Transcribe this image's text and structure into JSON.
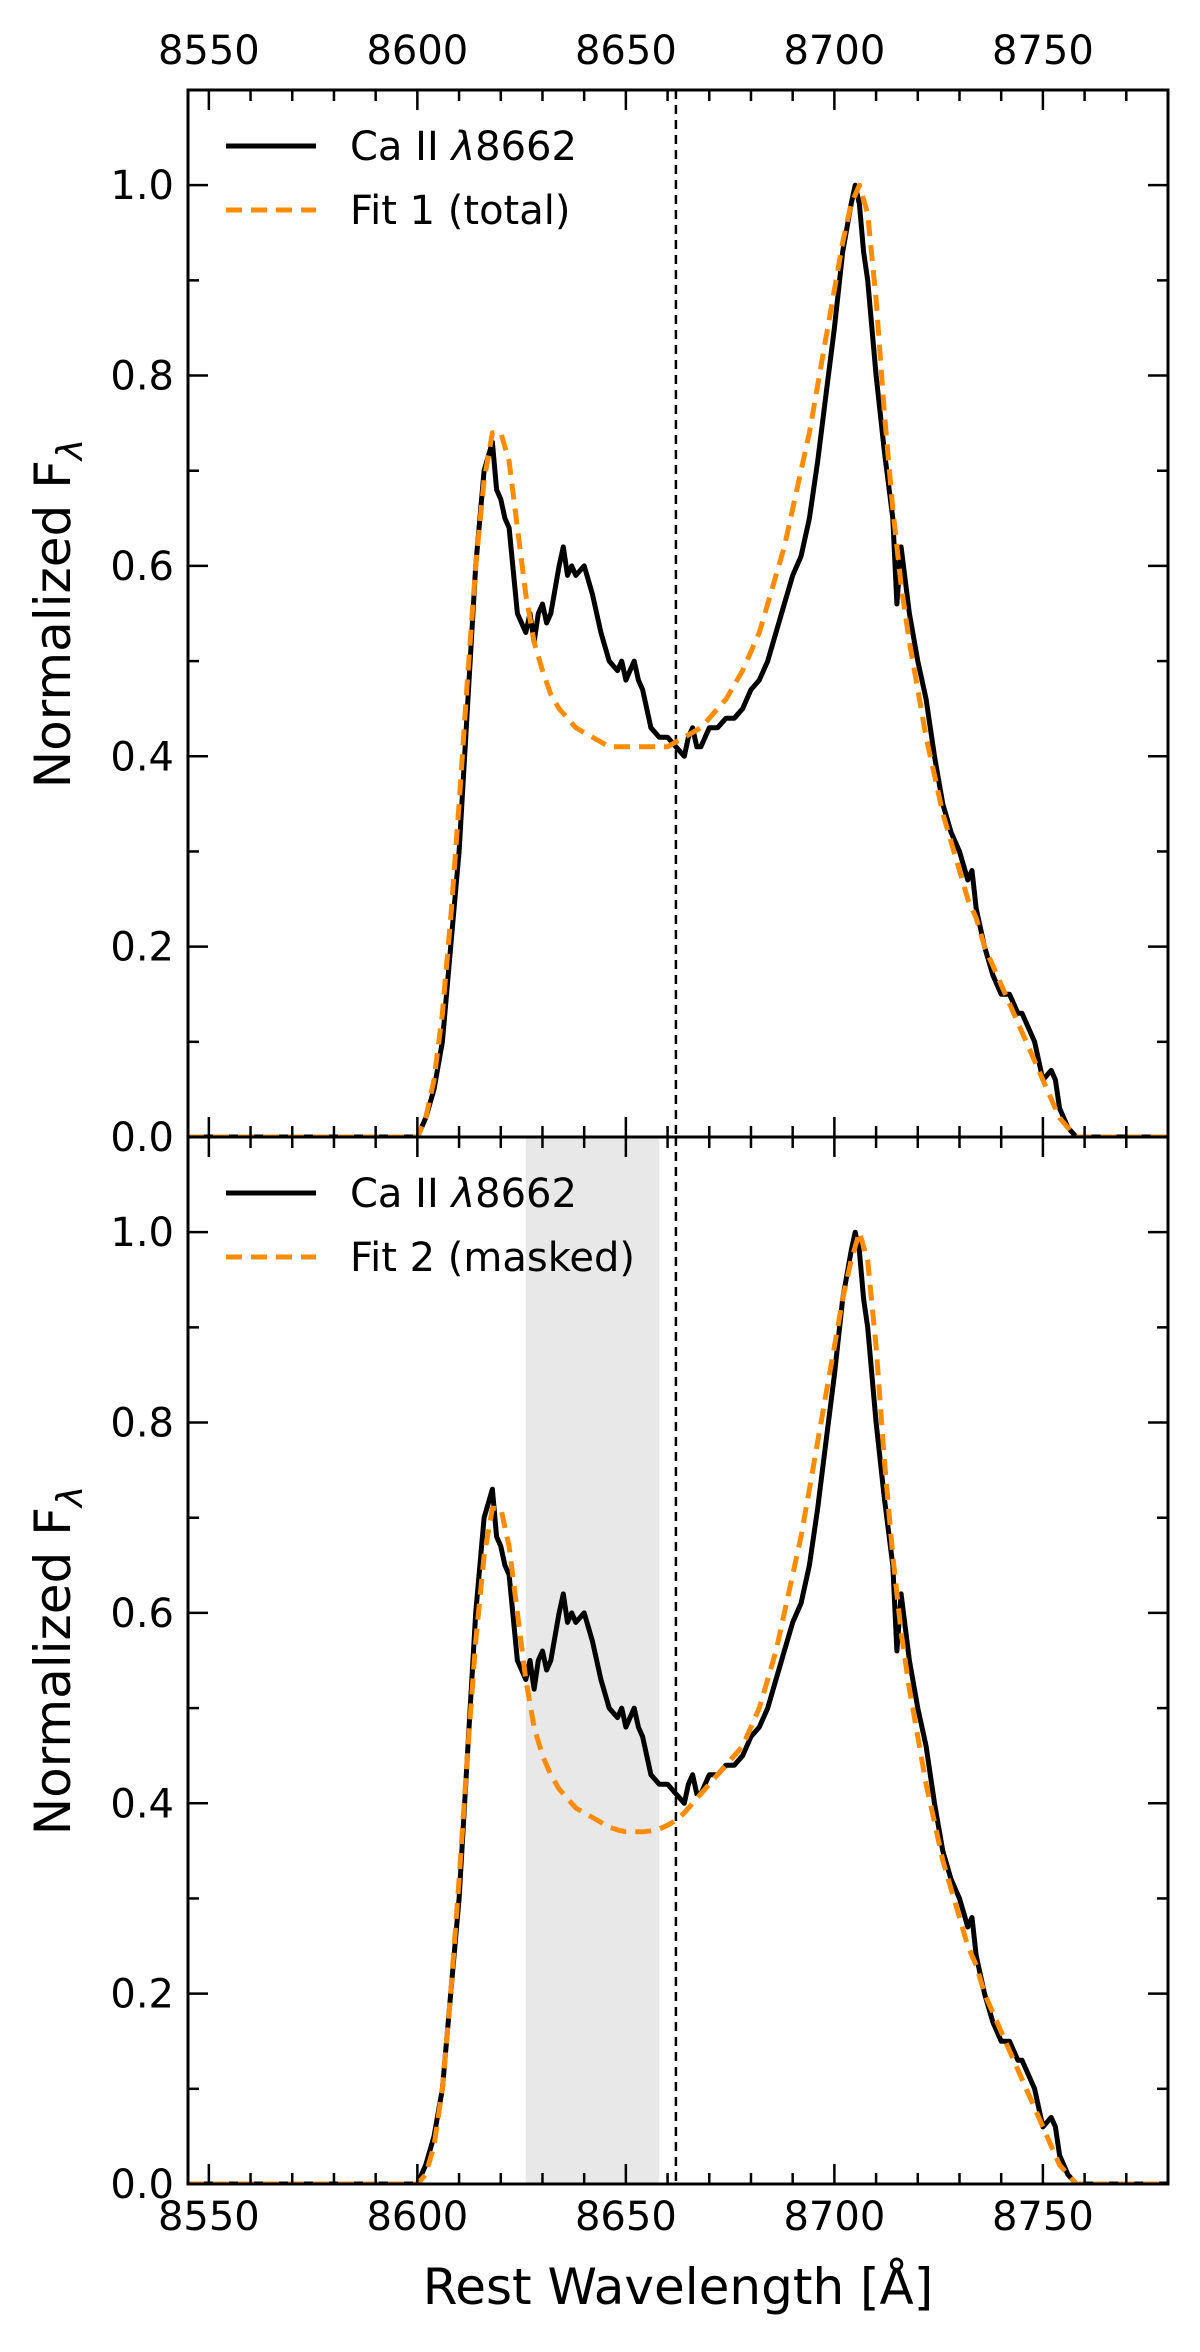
{
  "chart_data": [
    {
      "type": "line",
      "panel": "top",
      "xlim": [
        8545,
        8780
      ],
      "ylim": [
        0.0,
        1.1
      ],
      "xticks": [
        8550,
        8600,
        8650,
        8700,
        8750
      ],
      "yticks": [
        0.0,
        0.2,
        0.4,
        0.6,
        0.8,
        1.0
      ],
      "ytick_labels": [
        "0.0",
        "0.2",
        "0.4",
        "0.6",
        "0.8",
        "1.0"
      ],
      "xtick_labels_top": [
        "8550",
        "8600",
        "8650",
        "8700",
        "8750"
      ],
      "ylabel": "Normalized F",
      "ylabel_sub": "λ",
      "vline_x": 8662,
      "legend": [
        {
          "label": "Ca II ",
          "label_italic": "λ",
          "label_tail": "8662",
          "style": "solid",
          "color": "#000000"
        },
        {
          "label": "Fit 1 (total)",
          "style": "dashed",
          "color": "#FF8C00"
        }
      ],
      "series": [
        {
          "name": "Ca II λ8662",
          "color": "#000000",
          "x": [
            8545,
            8600,
            8602,
            8604,
            8606,
            8608,
            8610,
            8612,
            8614,
            8616,
            8618,
            8619,
            8620,
            8621,
            8622,
            8624,
            8626,
            8627,
            8628,
            8629,
            8630,
            8631,
            8632,
            8634,
            8635,
            8636,
            8637,
            8638,
            8640,
            8642,
            8644,
            8646,
            8648,
            8649,
            8650,
            8651,
            8652,
            8653,
            8654,
            8656,
            8658,
            8660,
            8662,
            8664,
            8665,
            8666,
            8667,
            8668,
            8670,
            8672,
            8674,
            8675,
            8676,
            8678,
            8680,
            8682,
            8684,
            8686,
            8688,
            8690,
            8692,
            8694,
            8696,
            8698,
            8700,
            8702,
            8704,
            8705,
            8706,
            8707,
            8708,
            8710,
            8712,
            8714,
            8715,
            8716,
            8718,
            8720,
            8722,
            8724,
            8726,
            8728,
            8730,
            8732,
            8733,
            8734,
            8736,
            8738,
            8740,
            8742,
            8744,
            8745,
            8746,
            8748,
            8750,
            8752,
            8753,
            8754,
            8756,
            8758,
            8760,
            8780
          ],
          "y": [
            0.0,
            0.0,
            0.02,
            0.05,
            0.1,
            0.2,
            0.3,
            0.45,
            0.6,
            0.7,
            0.73,
            0.68,
            0.67,
            0.65,
            0.64,
            0.55,
            0.53,
            0.55,
            0.52,
            0.55,
            0.56,
            0.54,
            0.55,
            0.6,
            0.62,
            0.59,
            0.6,
            0.59,
            0.6,
            0.57,
            0.53,
            0.5,
            0.49,
            0.5,
            0.48,
            0.49,
            0.5,
            0.48,
            0.47,
            0.43,
            0.42,
            0.42,
            0.41,
            0.4,
            0.42,
            0.43,
            0.41,
            0.41,
            0.43,
            0.43,
            0.44,
            0.44,
            0.44,
            0.45,
            0.47,
            0.48,
            0.5,
            0.53,
            0.56,
            0.59,
            0.61,
            0.65,
            0.71,
            0.78,
            0.85,
            0.93,
            0.98,
            1.0,
            0.98,
            0.93,
            0.9,
            0.8,
            0.72,
            0.65,
            0.56,
            0.62,
            0.55,
            0.5,
            0.46,
            0.4,
            0.35,
            0.32,
            0.3,
            0.27,
            0.28,
            0.24,
            0.2,
            0.17,
            0.15,
            0.15,
            0.13,
            0.13,
            0.12,
            0.1,
            0.06,
            0.07,
            0.06,
            0.03,
            0.01,
            0.0,
            0.0,
            0.0
          ]
        },
        {
          "name": "Fit 1 (total)",
          "color": "#FF8C00",
          "x": [
            8545,
            8600,
            8602,
            8604,
            8606,
            8608,
            8610,
            8612,
            8614,
            8616,
            8618,
            8620,
            8622,
            8624,
            8626,
            8628,
            8630,
            8632,
            8634,
            8636,
            8638,
            8640,
            8642,
            8644,
            8646,
            8648,
            8650,
            8652,
            8654,
            8656,
            8658,
            8660,
            8662,
            8664,
            8666,
            8668,
            8670,
            8672,
            8674,
            8676,
            8678,
            8680,
            8682,
            8684,
            8686,
            8688,
            8690,
            8692,
            8694,
            8696,
            8698,
            8700,
            8702,
            8704,
            8706,
            8708,
            8710,
            8712,
            8714,
            8716,
            8718,
            8720,
            8722,
            8724,
            8726,
            8728,
            8730,
            8732,
            8734,
            8736,
            8738,
            8740,
            8742,
            8744,
            8746,
            8748,
            8750,
            8752,
            8754,
            8756,
            8758,
            8780
          ],
          "y": [
            0.0,
            0.0,
            0.02,
            0.06,
            0.13,
            0.23,
            0.35,
            0.48,
            0.6,
            0.69,
            0.74,
            0.74,
            0.71,
            0.64,
            0.57,
            0.52,
            0.49,
            0.465,
            0.45,
            0.44,
            0.43,
            0.425,
            0.42,
            0.415,
            0.41,
            0.41,
            0.41,
            0.41,
            0.41,
            0.41,
            0.41,
            0.41,
            0.415,
            0.42,
            0.425,
            0.43,
            0.44,
            0.45,
            0.46,
            0.475,
            0.49,
            0.51,
            0.53,
            0.56,
            0.59,
            0.62,
            0.66,
            0.7,
            0.74,
            0.79,
            0.84,
            0.89,
            0.94,
            0.98,
            1.0,
            0.97,
            0.88,
            0.76,
            0.66,
            0.58,
            0.52,
            0.47,
            0.42,
            0.38,
            0.34,
            0.31,
            0.28,
            0.25,
            0.23,
            0.2,
            0.18,
            0.16,
            0.14,
            0.12,
            0.1,
            0.08,
            0.06,
            0.04,
            0.02,
            0.01,
            0.0,
            0.0
          ]
        }
      ]
    },
    {
      "type": "line",
      "panel": "bottom",
      "xlim": [
        8545,
        8780
      ],
      "ylim": [
        0.0,
        1.1
      ],
      "xticks": [
        8550,
        8600,
        8650,
        8700,
        8750
      ],
      "yticks": [
        0.0,
        0.2,
        0.4,
        0.6,
        0.8,
        1.0
      ],
      "ytick_labels": [
        "0.0",
        "0.2",
        "0.4",
        "0.6",
        "0.8",
        "1.0"
      ],
      "xtick_labels_bottom": [
        "8550",
        "8600",
        "8650",
        "8700",
        "8750"
      ],
      "xlabel": "Rest Wavelength [Å]",
      "ylabel": "Normalized F",
      "ylabel_sub": "λ",
      "vline_x": 8662,
      "mask_region": [
        8626,
        8658
      ],
      "legend": [
        {
          "label": "Ca II ",
          "label_italic": "λ",
          "label_tail": "8662",
          "style": "solid",
          "color": "#000000"
        },
        {
          "label": "Fit 2 (masked)",
          "style": "dashed",
          "color": "#FF8C00"
        }
      ],
      "series": [
        {
          "name": "Ca II λ8662",
          "color": "#000000",
          "x": [
            8545,
            8600,
            8602,
            8604,
            8606,
            8608,
            8610,
            8612,
            8614,
            8616,
            8618,
            8619,
            8620,
            8621,
            8622,
            8624,
            8626,
            8627,
            8628,
            8629,
            8630,
            8631,
            8632,
            8634,
            8635,
            8636,
            8637,
            8638,
            8640,
            8642,
            8644,
            8646,
            8648,
            8649,
            8650,
            8651,
            8652,
            8653,
            8654,
            8656,
            8658,
            8660,
            8662,
            8664,
            8665,
            8666,
            8667,
            8668,
            8670,
            8672,
            8674,
            8675,
            8676,
            8678,
            8680,
            8682,
            8684,
            8686,
            8688,
            8690,
            8692,
            8694,
            8696,
            8698,
            8700,
            8702,
            8704,
            8705,
            8706,
            8707,
            8708,
            8710,
            8712,
            8714,
            8715,
            8716,
            8718,
            8720,
            8722,
            8724,
            8726,
            8728,
            8730,
            8732,
            8733,
            8734,
            8736,
            8738,
            8740,
            8742,
            8744,
            8745,
            8746,
            8748,
            8750,
            8752,
            8753,
            8754,
            8756,
            8758,
            8760,
            8780
          ],
          "y": [
            0.0,
            0.0,
            0.02,
            0.05,
            0.1,
            0.2,
            0.3,
            0.45,
            0.6,
            0.7,
            0.73,
            0.68,
            0.67,
            0.65,
            0.64,
            0.55,
            0.53,
            0.55,
            0.52,
            0.55,
            0.56,
            0.54,
            0.55,
            0.6,
            0.62,
            0.59,
            0.6,
            0.59,
            0.6,
            0.57,
            0.53,
            0.5,
            0.49,
            0.5,
            0.48,
            0.49,
            0.5,
            0.48,
            0.47,
            0.43,
            0.42,
            0.42,
            0.41,
            0.4,
            0.42,
            0.43,
            0.41,
            0.41,
            0.43,
            0.43,
            0.44,
            0.44,
            0.44,
            0.45,
            0.47,
            0.48,
            0.5,
            0.53,
            0.56,
            0.59,
            0.61,
            0.65,
            0.71,
            0.78,
            0.85,
            0.93,
            0.98,
            1.0,
            0.98,
            0.93,
            0.9,
            0.8,
            0.72,
            0.65,
            0.56,
            0.62,
            0.55,
            0.5,
            0.46,
            0.4,
            0.35,
            0.32,
            0.3,
            0.27,
            0.28,
            0.24,
            0.2,
            0.17,
            0.15,
            0.15,
            0.13,
            0.13,
            0.12,
            0.1,
            0.06,
            0.07,
            0.06,
            0.03,
            0.01,
            0.0,
            0.0,
            0.0
          ]
        },
        {
          "name": "Fit 2 (masked)",
          "color": "#FF8C00",
          "x": [
            8545,
            8600,
            8602,
            8604,
            8606,
            8608,
            8610,
            8612,
            8614,
            8616,
            8618,
            8620,
            8622,
            8624,
            8626,
            8628,
            8630,
            8632,
            8634,
            8636,
            8638,
            8640,
            8642,
            8644,
            8646,
            8648,
            8650,
            8652,
            8654,
            8656,
            8658,
            8660,
            8662,
            8664,
            8666,
            8668,
            8670,
            8672,
            8674,
            8676,
            8678,
            8680,
            8682,
            8684,
            8686,
            8688,
            8690,
            8692,
            8694,
            8696,
            8698,
            8700,
            8702,
            8704,
            8706,
            8708,
            8710,
            8712,
            8714,
            8716,
            8718,
            8720,
            8722,
            8724,
            8726,
            8728,
            8730,
            8732,
            8734,
            8736,
            8738,
            8740,
            8742,
            8744,
            8746,
            8748,
            8750,
            8752,
            8754,
            8756,
            8758,
            8780
          ],
          "y": [
            0.0,
            0.0,
            0.01,
            0.04,
            0.1,
            0.2,
            0.32,
            0.45,
            0.57,
            0.66,
            0.71,
            0.71,
            0.67,
            0.6,
            0.53,
            0.48,
            0.45,
            0.43,
            0.415,
            0.405,
            0.395,
            0.39,
            0.385,
            0.38,
            0.375,
            0.372,
            0.37,
            0.37,
            0.37,
            0.371,
            0.373,
            0.377,
            0.382,
            0.39,
            0.4,
            0.41,
            0.42,
            0.43,
            0.44,
            0.45,
            0.46,
            0.48,
            0.5,
            0.53,
            0.56,
            0.6,
            0.64,
            0.68,
            0.73,
            0.78,
            0.83,
            0.88,
            0.93,
            0.97,
            1.0,
            0.97,
            0.88,
            0.76,
            0.66,
            0.58,
            0.52,
            0.47,
            0.42,
            0.38,
            0.34,
            0.31,
            0.28,
            0.25,
            0.23,
            0.2,
            0.18,
            0.16,
            0.14,
            0.12,
            0.1,
            0.08,
            0.06,
            0.04,
            0.02,
            0.01,
            0.0,
            0.0
          ]
        }
      ]
    }
  ]
}
